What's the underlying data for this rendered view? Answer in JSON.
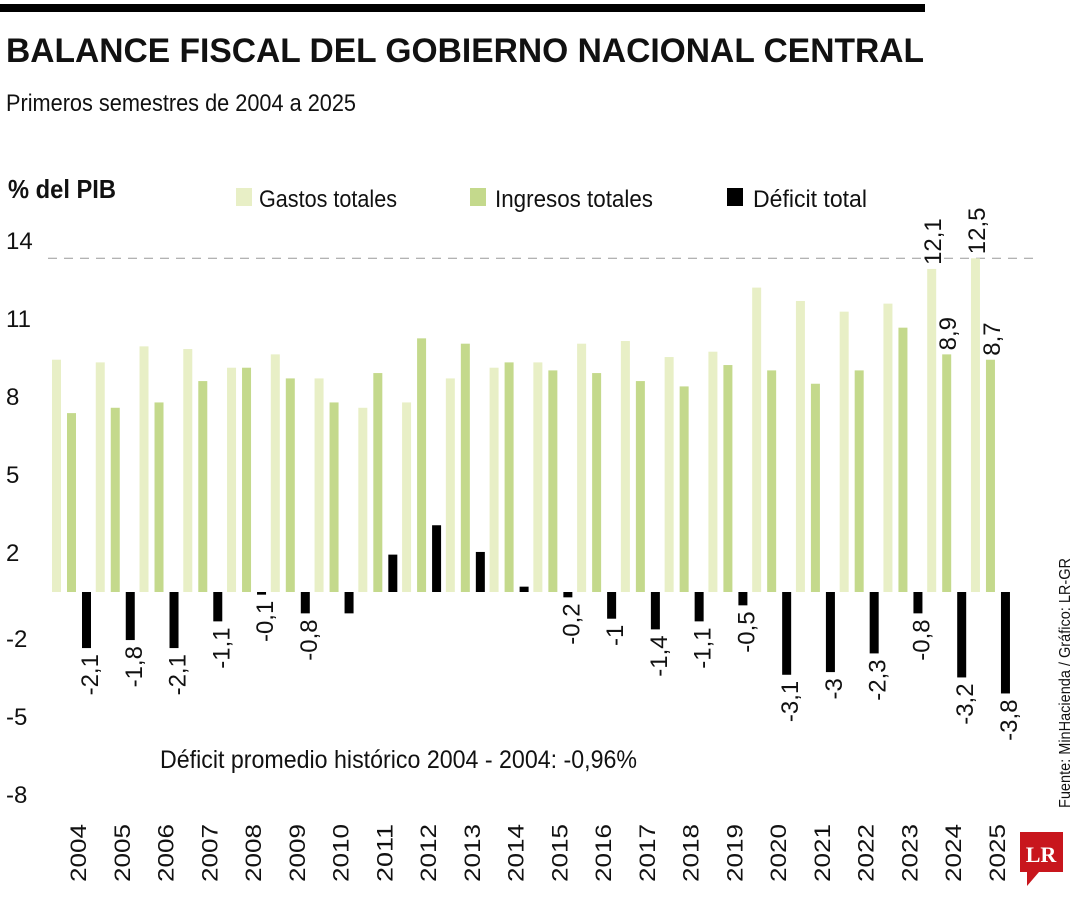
{
  "header": {
    "title": "BALANCE FISCAL DEL GOBIERNO NACIONAL CENTRAL",
    "subtitle": "Primeros semestres de 2004 a 2025"
  },
  "source": "Fuente: MinHacienda / Gráfico: LR-GR",
  "logo_text": "LR",
  "colors": {
    "gastos": "#e8efc6",
    "ingresos": "#c4d98c",
    "deficit": "#000000",
    "logo": "#c8161d"
  },
  "chart_data": {
    "type": "bar",
    "title": "BALANCE FISCAL DEL GOBIERNO NACIONAL CENTRAL",
    "ylabel": "% del PIB",
    "yticks": [
      14,
      11,
      8,
      5,
      2,
      -2,
      -5,
      -8
    ],
    "ylim": [
      -8,
      14
    ],
    "grid": false,
    "legend": "top",
    "categories": [
      "2004",
      "2005",
      "2006",
      "2007",
      "2008",
      "2009",
      "2010",
      "2011",
      "2012",
      "2013",
      "2014",
      "2015",
      "2016",
      "2017",
      "2018",
      "2019",
      "2020",
      "2021",
      "2022",
      "2023",
      "2024",
      "2025"
    ],
    "series": [
      {
        "name": "Gastos totales",
        "values": [
          8.7,
          8.6,
          9.2,
          9.1,
          8.4,
          8.9,
          8.0,
          6.9,
          7.1,
          8.0,
          8.4,
          8.6,
          9.3,
          9.4,
          8.8,
          9.0,
          11.4,
          10.9,
          10.5,
          10.8,
          12.1,
          12.5
        ],
        "labels": [
          null,
          null,
          null,
          null,
          null,
          null,
          null,
          null,
          null,
          null,
          null,
          null,
          null,
          null,
          null,
          null,
          null,
          null,
          null,
          null,
          "12,1",
          "12,5"
        ]
      },
      {
        "name": "Ingresos totales",
        "values": [
          6.7,
          6.9,
          7.1,
          7.9,
          8.4,
          8.0,
          7.1,
          8.2,
          9.5,
          9.3,
          8.6,
          8.3,
          8.2,
          7.9,
          7.7,
          8.5,
          8.3,
          7.8,
          8.3,
          9.9,
          8.9,
          8.7
        ],
        "labels": [
          null,
          null,
          null,
          null,
          null,
          null,
          null,
          null,
          null,
          null,
          null,
          null,
          null,
          null,
          null,
          null,
          null,
          null,
          null,
          null,
          "8,9",
          "8,7"
        ]
      },
      {
        "name": "Déficit total",
        "values": [
          -2.1,
          -1.8,
          -2.1,
          -1.1,
          -0.1,
          -0.8,
          -0.8,
          1.4,
          2.5,
          1.5,
          0.2,
          -0.2,
          -1,
          -1.4,
          -1.1,
          -0.5,
          -3.1,
          -3,
          -2.3,
          -0.8,
          -3.2,
          -3.8
        ],
        "labels": [
          "-2,1",
          "-1,8",
          "-2,1",
          "-1,1",
          "-0,1",
          "-0,8",
          null,
          null,
          null,
          null,
          null,
          "-0,2",
          "-1",
          "-1,4",
          "-1,1",
          "-0,5",
          "-3,1",
          "-3",
          "-2,3",
          "-0,8",
          "-3,2",
          "-3,8"
        ]
      }
    ],
    "reference_line": {
      "value": 12.5,
      "style": "dashed"
    },
    "annotation": "Déficit promedio histórico 2004 - 2004: -0,96%"
  }
}
